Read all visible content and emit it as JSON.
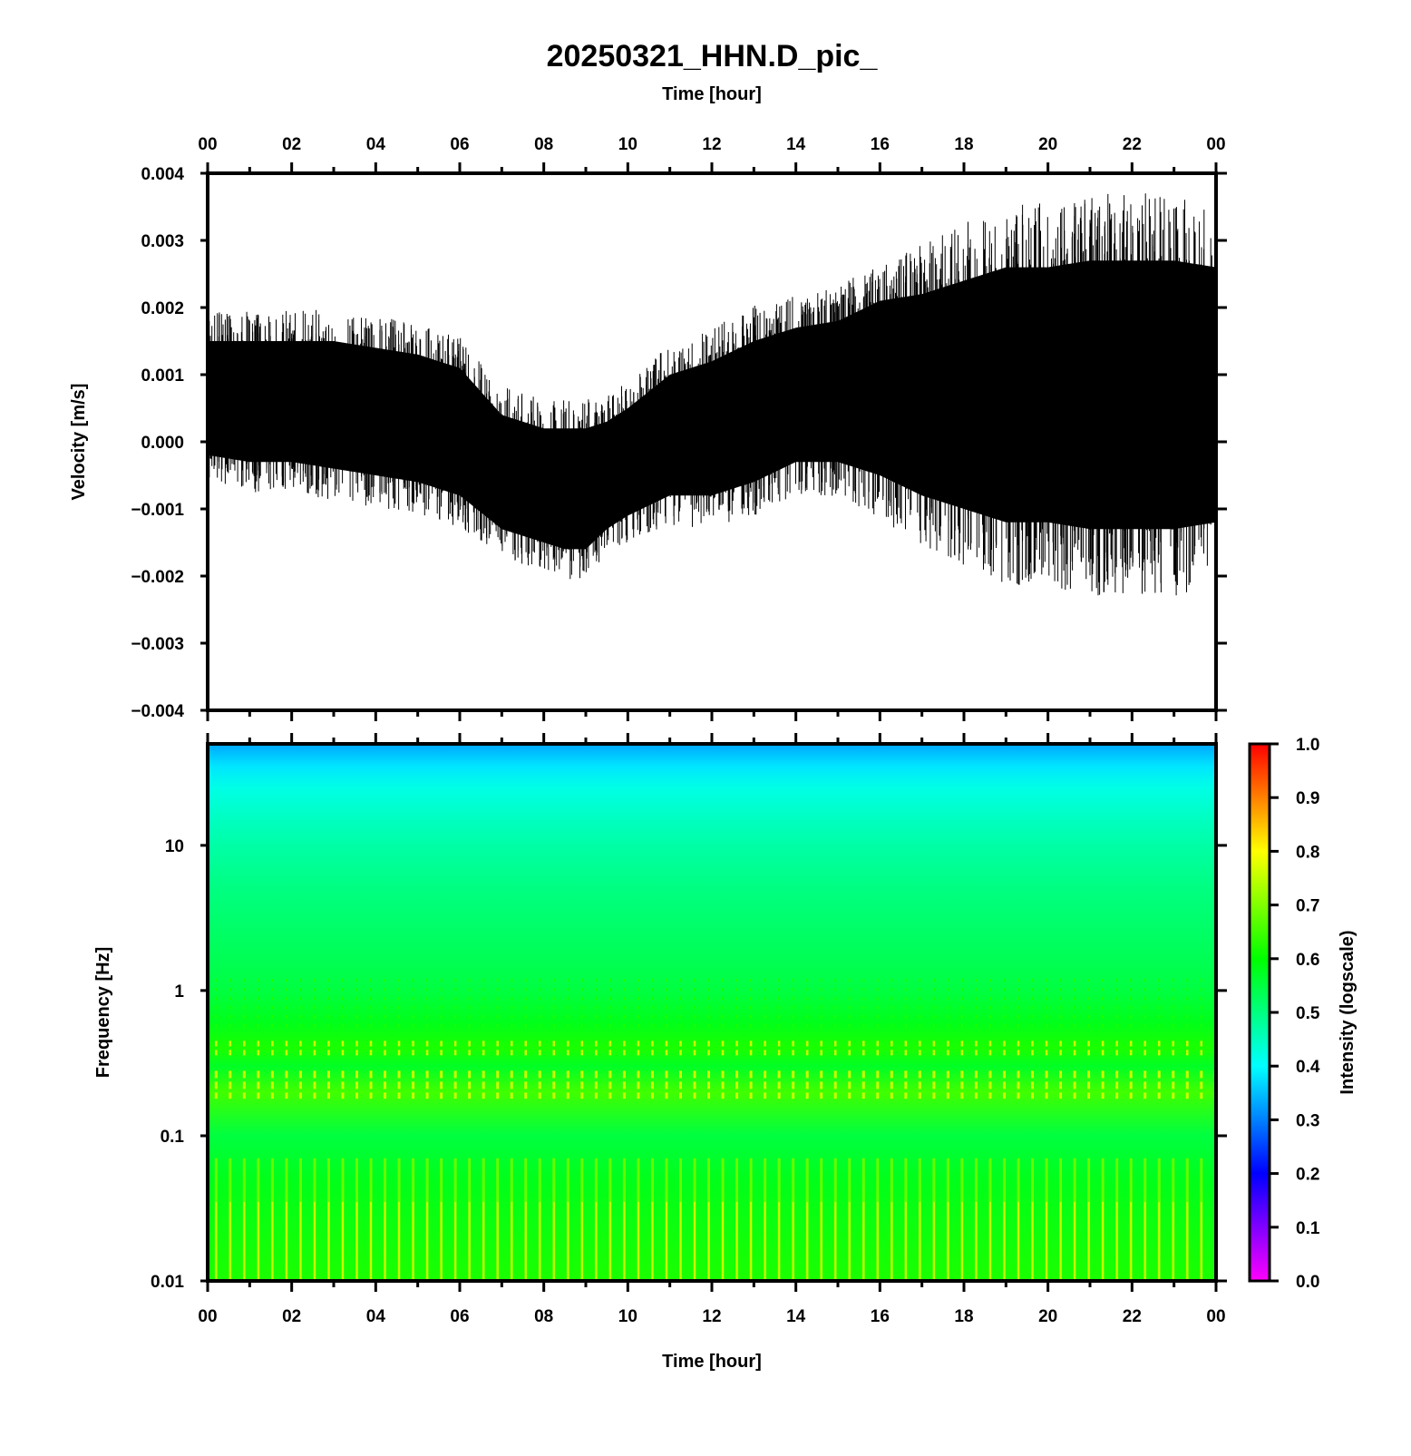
{
  "title": "20250321_HHN.D_pic_",
  "colors": {
    "trace": "#000000",
    "colormap": [
      "#ff00ff",
      "#8000ff",
      "#0000ff",
      "#0080ff",
      "#00ffff",
      "#00ff80",
      "#00ff00",
      "#80ff00",
      "#ffff00",
      "#ff8000",
      "#ff0000"
    ]
  },
  "chart_data": [
    {
      "type": "line",
      "title": "20250321_HHN.D_pic_",
      "xlabel": "Time [hour]",
      "ylabel": "Velocity [m/s]",
      "xlim": [
        0,
        24
      ],
      "ylim": [
        -0.004,
        0.004
      ],
      "x_tick_labels": [
        "00",
        "02",
        "04",
        "06",
        "08",
        "10",
        "12",
        "14",
        "16",
        "18",
        "20",
        "22",
        "00"
      ],
      "y_tick_labels": [
        "0.004",
        "0.003",
        "0.002",
        "0.001",
        "0.000",
        "−0.001",
        "−0.002",
        "−0.003",
        "−0.004"
      ],
      "series": [
        {
          "x": [
            0,
            1,
            2,
            3,
            4,
            5,
            6,
            7,
            8,
            8.5,
            9,
            9.5,
            10,
            11,
            12,
            13,
            14,
            15,
            16,
            17,
            18,
            19,
            20,
            21,
            22,
            23,
            24
          ],
          "upper": [
            0.0015,
            0.0015,
            0.0015,
            0.0015,
            0.0014,
            0.0013,
            0.0011,
            0.0004,
            0.0002,
            0.0002,
            0.0002,
            0.0003,
            0.0005,
            0.001,
            0.0012,
            0.0015,
            0.0017,
            0.0018,
            0.0021,
            0.0022,
            0.0024,
            0.0026,
            0.0026,
            0.0027,
            0.0027,
            0.0027,
            0.0026
          ],
          "lower": [
            -0.0002,
            -0.0003,
            -0.0003,
            -0.0004,
            -0.0005,
            -0.0006,
            -0.0008,
            -0.0013,
            -0.0015,
            -0.0016,
            -0.0016,
            -0.0013,
            -0.0011,
            -0.0008,
            -0.0008,
            -0.0006,
            -0.0003,
            -0.0003,
            -0.0005,
            -0.0008,
            -0.001,
            -0.0012,
            -0.0012,
            -0.0013,
            -0.0013,
            -0.0013,
            -0.0012
          ]
        }
      ]
    },
    {
      "type": "heatmap",
      "xlabel": "Time [hour]",
      "ylabel": "Frequency [Hz]",
      "xlim": [
        0,
        24
      ],
      "ylim": [
        0.01,
        50
      ],
      "yscale": "log",
      "x_tick_labels": [
        "00",
        "02",
        "04",
        "06",
        "08",
        "10",
        "12",
        "14",
        "16",
        "18",
        "20",
        "22",
        "00"
      ],
      "y_tick_labels": [
        "10",
        "1",
        "0.1",
        "0.01"
      ],
      "colorbar": {
        "label": "Intensity (logscale)",
        "range": [
          0.0,
          1.0
        ],
        "tick_labels": [
          "1.0",
          "0.9",
          "0.8",
          "0.7",
          "0.6",
          "0.5",
          "0.4",
          "0.3",
          "0.2",
          "0.1",
          "0.0"
        ]
      },
      "intensity_profile": {
        "freq_hz": [
          50,
          35,
          25,
          15,
          10,
          5,
          1,
          0.6,
          0.4,
          0.3,
          0.2,
          0.1,
          0.05,
          0.01
        ],
        "intensity": [
          0.33,
          0.38,
          0.42,
          0.45,
          0.47,
          0.5,
          0.55,
          0.58,
          0.62,
          0.57,
          0.65,
          0.55,
          0.58,
          0.62
        ]
      }
    }
  ]
}
